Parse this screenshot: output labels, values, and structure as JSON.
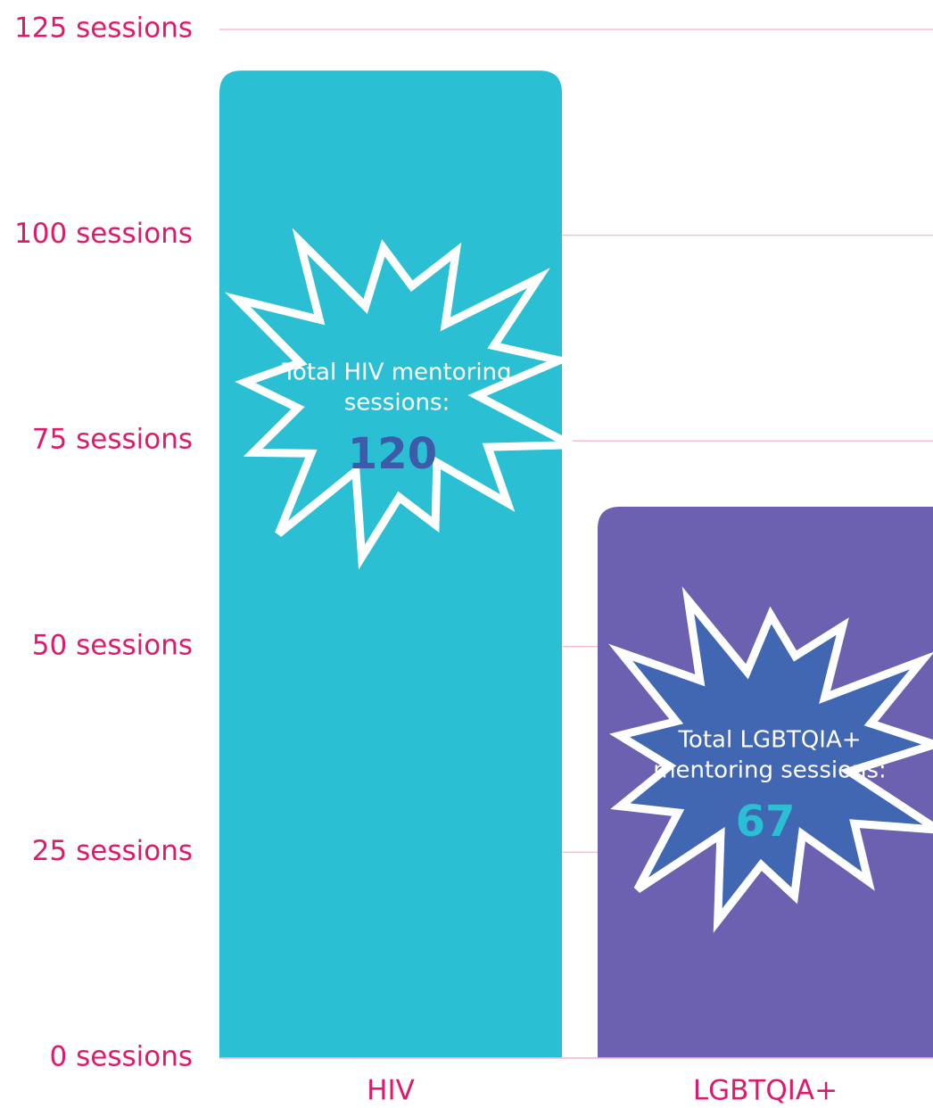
{
  "chart_data": {
    "type": "bar",
    "categories": [
      "HIV",
      "LGBTQIA+"
    ],
    "values": [
      120,
      67
    ],
    "colors": [
      "#2bbfd4",
      "#6c60b0"
    ],
    "ylim": [
      0,
      125
    ],
    "yticks": [
      {
        "value": 0,
        "label": "0 sessions"
      },
      {
        "value": 25,
        "label": "25 sessions"
      },
      {
        "value": 50,
        "label": "50 sessions"
      },
      {
        "value": 75,
        "label": "75 sessions"
      },
      {
        "value": 100,
        "label": "100 sessions"
      },
      {
        "value": 125,
        "label": "125 sessions"
      }
    ],
    "grid": true,
    "annotations": [
      [
        "Total HIV mentoring",
        "sessions:"
      ],
      [
        "Total LGBTQIA+",
        "mentoring sessions:"
      ]
    ],
    "annotation_fills": [
      "#2bbfd4",
      "#4166b2"
    ],
    "value_label_colors": [
      "#3d5ba8",
      "#2bbfd4"
    ]
  }
}
